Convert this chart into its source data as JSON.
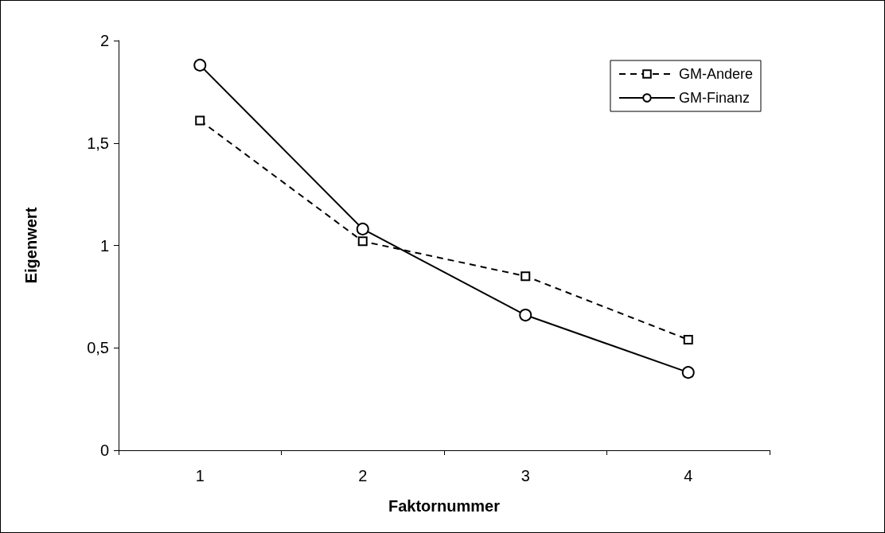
{
  "chart_data": {
    "type": "line",
    "xlabel": "Faktornummer",
    "ylabel": "Eigenwert",
    "categories": [
      "1",
      "2",
      "3",
      "4"
    ],
    "series": [
      {
        "name": "GM-Andere",
        "color": "#000000",
        "values": [
          1.61,
          1.02,
          0.85,
          0.54
        ],
        "marker": "square",
        "line_style": "dashed"
      },
      {
        "name": "GM-Finanz",
        "color": "#000000",
        "values": [
          1.88,
          1.08,
          0.66,
          0.38
        ],
        "marker": "circle",
        "line_style": "solid"
      }
    ],
    "ylim": [
      0,
      2
    ],
    "yticks": [
      0,
      {
        "value": 0.5,
        "label": "0,5"
      },
      1,
      {
        "value": 1.5,
        "label": "1,5"
      },
      2
    ],
    "grid": false,
    "legend": "top right"
  }
}
